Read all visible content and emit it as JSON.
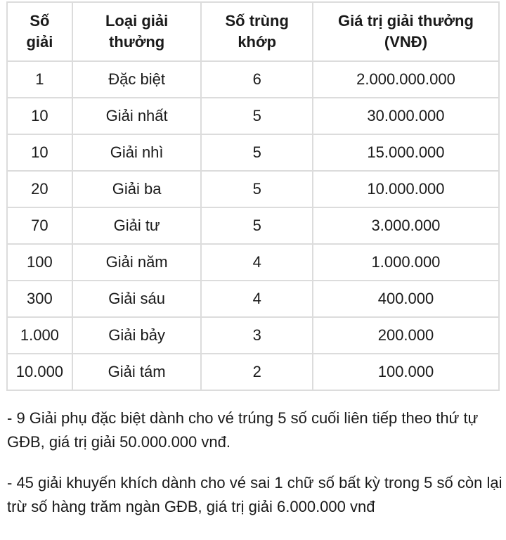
{
  "table": {
    "headers": [
      "Số giải",
      "Loại giải thưởng",
      "Số trùng khớp",
      "Giá trị giải thưởng (VNĐ)"
    ],
    "rows": [
      [
        "1",
        "Đặc biệt",
        "6",
        "2.000.000.000"
      ],
      [
        "10",
        "Giải nhất",
        "5",
        "30.000.000"
      ],
      [
        "10",
        "Giải nhì",
        "5",
        "15.000.000"
      ],
      [
        "20",
        "Giải ba",
        "5",
        "10.000.000"
      ],
      [
        "70",
        "Giải tư",
        "5",
        "3.000.000"
      ],
      [
        "100",
        "Giải năm",
        "4",
        "1.000.000"
      ],
      [
        "300",
        "Giải sáu",
        "4",
        "400.000"
      ],
      [
        "1.000",
        "Giải bảy",
        "3",
        "200.000"
      ],
      [
        "10.000",
        "Giải tám",
        "2",
        "100.000"
      ]
    ]
  },
  "notes": [
    "- 9 Giải phụ đặc biệt dành cho vé trúng 5 số cuối liên tiếp theo thứ tự GĐB, giá trị giải 50.000.000 vnđ.",
    "- 45 giải khuyến khích dành cho vé sai 1 chữ số bất kỳ trong 5 số còn lại trừ số hàng trăm ngàn GĐB, giá trị giải 6.000.000 vnđ"
  ]
}
